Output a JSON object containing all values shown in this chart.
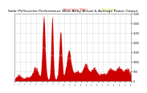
{
  "title": "Solar PV/Inverter Performance West Array Actual & Average Power Output",
  "title_fontsize": 3.2,
  "bg_color": "#ffffff",
  "plot_bg_color": "#ffffff",
  "bar_color": "#cc0000",
  "avg_line_color": "#ffffff",
  "legend_actual_color": "#ff2222",
  "legend_avg_color": "#cccc00",
  "legend_label_actual": "Actual output (Watts)",
  "legend_label_avg": "Avg. output",
  "ylabel_right": "Watts",
  "ylim": [
    0,
    3500
  ],
  "yticks": [
    0,
    500,
    1000,
    1500,
    2000,
    2500,
    3000,
    3500
  ],
  "grid_color": "#aaaaaa",
  "num_points": 350
}
